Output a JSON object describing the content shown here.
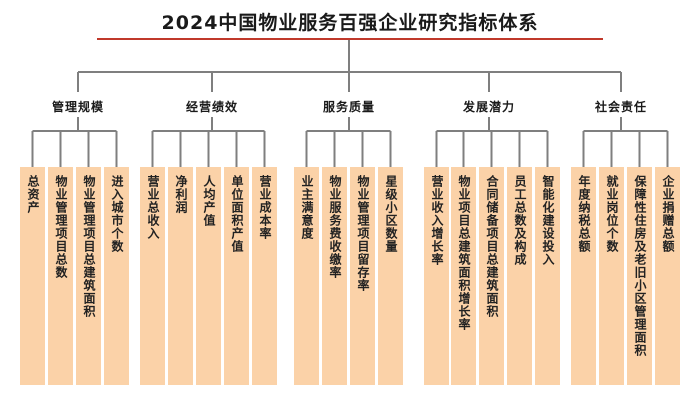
{
  "title": "2024中国物业服务百强企业研究指标体系",
  "categories": [
    {
      "name": "管理规模",
      "items": [
        "总资产",
        "物业管理项目总数",
        "物业管理项目总建筑面积",
        "进入城市个数"
      ]
    },
    {
      "name": "经营绩效",
      "items": [
        "营业总收入",
        "净利润",
        "人均产值",
        "单位面积产值",
        "营业成本率"
      ]
    },
    {
      "name": "服务质量",
      "items": [
        "业主满意度",
        "物业服务费收缴率",
        "物业管理项目留存率",
        "星级小区数量"
      ]
    },
    {
      "name": "发展潜力",
      "items": [
        "营业收入增长率",
        "物业项目总建筑面积增长率",
        "合同储备项目总建筑面积",
        "员工总数及构成",
        "智能化建设投入"
      ]
    },
    {
      "name": "社会责任",
      "items": [
        "年度纳税总额",
        "就业岗位个数",
        "保障性住房及老旧小区管理面积",
        "企业捐赠总额"
      ]
    }
  ],
  "colors": {
    "box_fill": "#fbd2a8",
    "line": "#7f7f7f",
    "title_rule": "#c0392b"
  }
}
